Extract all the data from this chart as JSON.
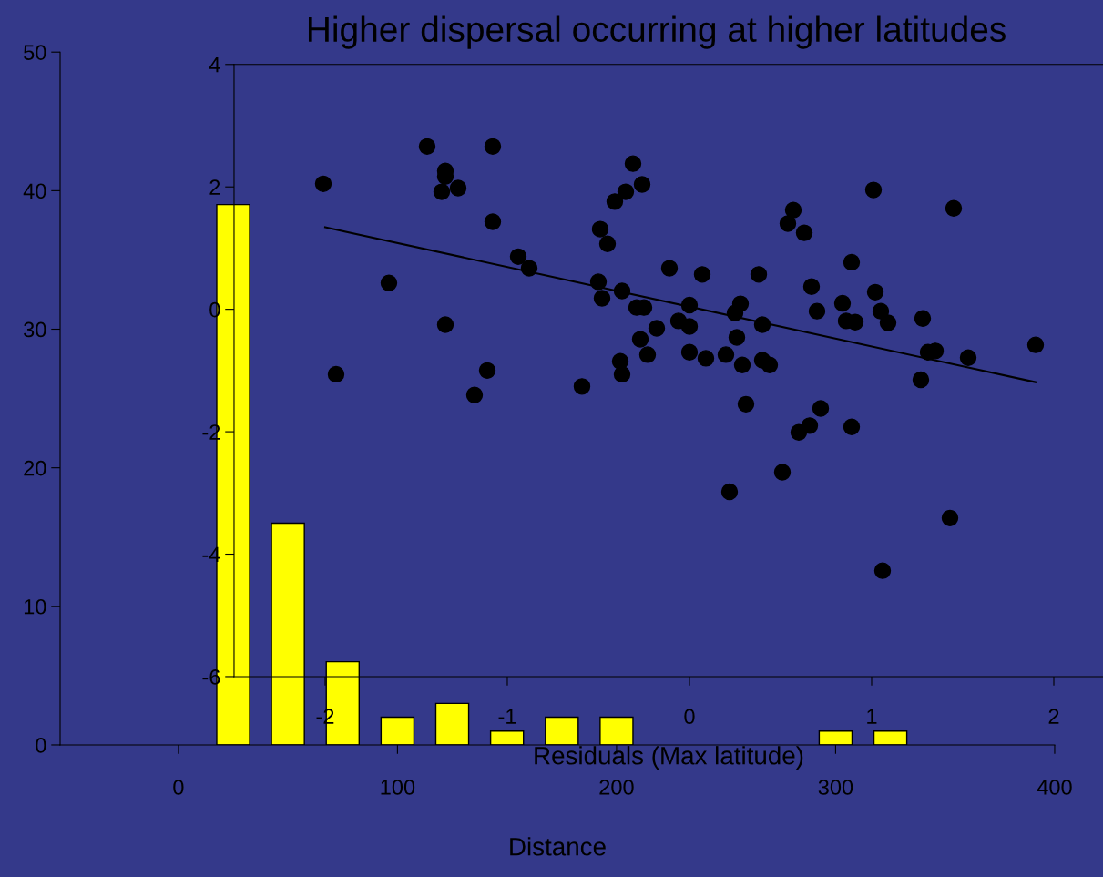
{
  "chart_data": [
    {
      "type": "bar",
      "xlabel": "Distance",
      "x": [
        25,
        50,
        75,
        100,
        125,
        150,
        175,
        200,
        225,
        250,
        275,
        300,
        325
      ],
      "series": [
        {
          "color": "#ffff00",
          "values": [
            39,
            16,
            6,
            2,
            3,
            1,
            2,
            2,
            0,
            0,
            0,
            1,
            1
          ]
        }
      ],
      "xlim": [
        -54,
        400
      ],
      "xticks": [
        0,
        100,
        200,
        300,
        400
      ],
      "ylim": [
        0,
        50
      ],
      "yticks": [
        0,
        10,
        20,
        30,
        40,
        50
      ],
      "grid": false,
      "legend": false
    },
    {
      "type": "scatter",
      "title": "Higher dispersal occurring at higher latitudes",
      "xlabel": "Residuals (Max latitude)",
      "marker": "circle",
      "grid": false,
      "legend": false,
      "xlim": [
        -2.5,
        2.27
      ],
      "xticks": [
        -2,
        -1,
        0,
        1,
        2
      ],
      "ylim": [
        -6,
        4
      ],
      "yticks": [
        -6,
        -4,
        -2,
        0,
        2,
        4
      ],
      "series": [
        {
          "color": "#000000",
          "x": [
            -2.01,
            -1.94,
            -1.65,
            -1.44,
            -1.34,
            -1.34,
            -1.36,
            -1.27,
            -1.34,
            -1.18,
            -1.11,
            -1.08,
            -1.08,
            -0.94,
            -0.88,
            -0.59,
            -0.5,
            -0.48,
            -0.49,
            -0.45,
            -0.41,
            -0.37,
            -0.35,
            -0.31,
            -0.26,
            -0.29,
            -0.25,
            -0.27,
            -0.38,
            -0.37,
            -0.23,
            -0.18,
            -0.11,
            -0.06,
            0.0,
            0.0,
            0.0,
            0.07,
            0.09,
            0.2,
            0.22,
            0.25,
            0.28,
            0.26,
            0.29,
            0.31,
            0.38,
            0.4,
            0.4,
            0.44,
            0.51,
            0.54,
            0.57,
            0.63,
            0.6,
            0.66,
            0.67,
            0.7,
            0.72,
            0.84,
            0.86,
            0.91,
            0.89,
            0.89,
            1.01,
            1.02,
            1.05,
            1.06,
            1.09,
            1.28,
            1.31,
            1.35,
            1.27,
            1.43,
            1.45,
            1.53,
            1.9
          ],
          "values": [
            2.05,
            -1.06,
            0.43,
            2.66,
            2.26,
            2.17,
            1.92,
            1.98,
            -0.25,
            -1.4,
            -1.0,
            2.66,
            1.43,
            0.86,
            0.67,
            -1.26,
            0.45,
            0.18,
            1.31,
            1.07,
            1.76,
            0.3,
            1.92,
            2.38,
            2.04,
            0.03,
            0.03,
            -0.49,
            -0.85,
            -1.06,
            -0.74,
            -0.31,
            0.67,
            -0.19,
            0.07,
            -0.28,
            -0.7,
            0.57,
            -0.8,
            -0.74,
            -2.98,
            -0.06,
            0.09,
            -0.46,
            -0.91,
            -1.55,
            0.57,
            -0.25,
            -0.83,
            -0.91,
            -2.66,
            1.4,
            1.62,
            1.25,
            -2.01,
            -1.9,
            0.37,
            -0.03,
            -1.62,
            0.1,
            -0.19,
            -0.21,
            0.77,
            -1.92,
            1.95,
            0.28,
            -0.03,
            -4.27,
            -0.22,
            -0.15,
            -0.7,
            -0.68,
            -1.15,
            -3.41,
            1.65,
            -0.79,
            -0.58
          ]
        },
        {
          "type": "line",
          "color": "#000000",
          "marker": "none",
          "line_style": "solid",
          "x": [
            -2.0,
            1.9
          ],
          "values": [
            1.34,
            -1.19
          ]
        }
      ]
    }
  ]
}
